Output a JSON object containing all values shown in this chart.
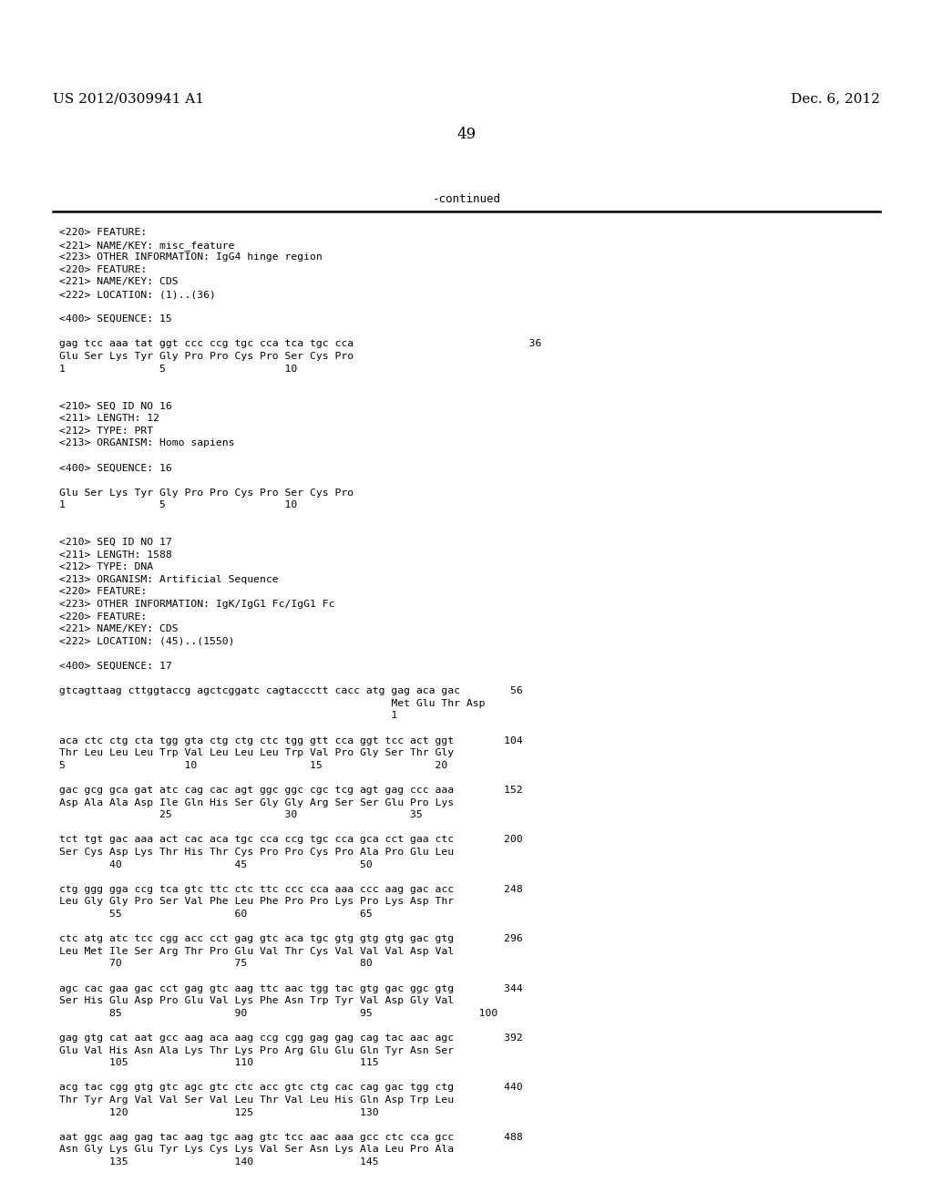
{
  "header_left": "US 2012/0309941 A1",
  "header_right": "Dec. 6, 2012",
  "page_number": "49",
  "continued_text": "-continued",
  "background_color": "#ffffff",
  "text_color": "#000000",
  "content_lines": [
    "<220> FEATURE:",
    "<221> NAME/KEY: misc_feature",
    "<223> OTHER INFORMATION: IgG4 hinge region",
    "<220> FEATURE:",
    "<221> NAME/KEY: CDS",
    "<222> LOCATION: (1)..(36)",
    "",
    "<400> SEQUENCE: 15",
    "",
    "gag tcc aaa tat ggt ccc ccg tgc cca tca tgc cca                            36",
    "Glu Ser Lys Tyr Gly Pro Pro Cys Pro Ser Cys Pro",
    "1               5                   10",
    "",
    "",
    "<210> SEQ ID NO 16",
    "<211> LENGTH: 12",
    "<212> TYPE: PRT",
    "<213> ORGANISM: Homo sapiens",
    "",
    "<400> SEQUENCE: 16",
    "",
    "Glu Ser Lys Tyr Gly Pro Pro Cys Pro Ser Cys Pro",
    "1               5                   10",
    "",
    "",
    "<210> SEQ ID NO 17",
    "<211> LENGTH: 1588",
    "<212> TYPE: DNA",
    "<213> ORGANISM: Artificial Sequence",
    "<220> FEATURE:",
    "<223> OTHER INFORMATION: IgK/IgG1 Fc/IgG1 Fc",
    "<220> FEATURE:",
    "<221> NAME/KEY: CDS",
    "<222> LOCATION: (45)..(1550)",
    "",
    "<400> SEQUENCE: 17",
    "",
    "gtcagttaag cttggtaccg agctcggatc cagtaccctt cacc atg gag aca gac        56",
    "                                                     Met Glu Thr Asp",
    "                                                     1",
    "",
    "aca ctc ctg cta tgg gta ctg ctg ctc tgg gtt cca ggt tcc act ggt        104",
    "Thr Leu Leu Leu Trp Val Leu Leu Leu Trp Val Pro Gly Ser Thr Gly",
    "5                   10                  15                  20",
    "",
    "gac gcg gca gat atc cag cac agt ggc ggc cgc tcg agt gag ccc aaa        152",
    "Asp Ala Ala Asp Ile Gln His Ser Gly Gly Arg Ser Ser Glu Pro Lys",
    "                25                  30                  35",
    "",
    "tct tgt gac aaa act cac aca tgc cca ccg tgc cca gca cct gaa ctc        200",
    "Ser Cys Asp Lys Thr His Thr Cys Pro Pro Cys Pro Ala Pro Glu Leu",
    "        40                  45                  50",
    "",
    "ctg ggg gga ccg tca gtc ttc ctc ttc ccc cca aaa ccc aag gac acc        248",
    "Leu Gly Gly Pro Ser Val Phe Leu Phe Pro Pro Lys Pro Lys Asp Thr",
    "        55                  60                  65",
    "",
    "ctc atg atc tcc cgg acc cct gag gtc aca tgc gtg gtg gtg gac gtg        296",
    "Leu Met Ile Ser Arg Thr Pro Glu Val Thr Cys Val Val Val Asp Val",
    "        70                  75                  80",
    "",
    "agc cac gaa gac cct gag gtc aag ttc aac tgg tac gtg gac ggc gtg        344",
    "Ser His Glu Asp Pro Glu Val Lys Phe Asn Trp Tyr Val Asp Gly Val",
    "        85                  90                  95                 100",
    "",
    "gag gtg cat aat gcc aag aca aag ccg cgg gag gag cag tac aac agc        392",
    "Glu Val His Asn Ala Lys Thr Lys Pro Arg Glu Glu Gln Tyr Asn Ser",
    "        105                 110                 115",
    "",
    "acg tac cgg gtg gtc agc gtc ctc acc gtc ctg cac cag gac tgg ctg        440",
    "Thr Tyr Arg Val Val Ser Val Leu Thr Val Leu His Gln Asp Trp Leu",
    "        120                 125                 130",
    "",
    "aat ggc aag gag tac aag tgc aag gtc tcc aac aaa gcc ctc cca gcc        488",
    "Asn Gly Lys Glu Tyr Lys Cys Lys Val Ser Asn Lys Ala Leu Pro Ala",
    "        135                 140                 145"
  ]
}
